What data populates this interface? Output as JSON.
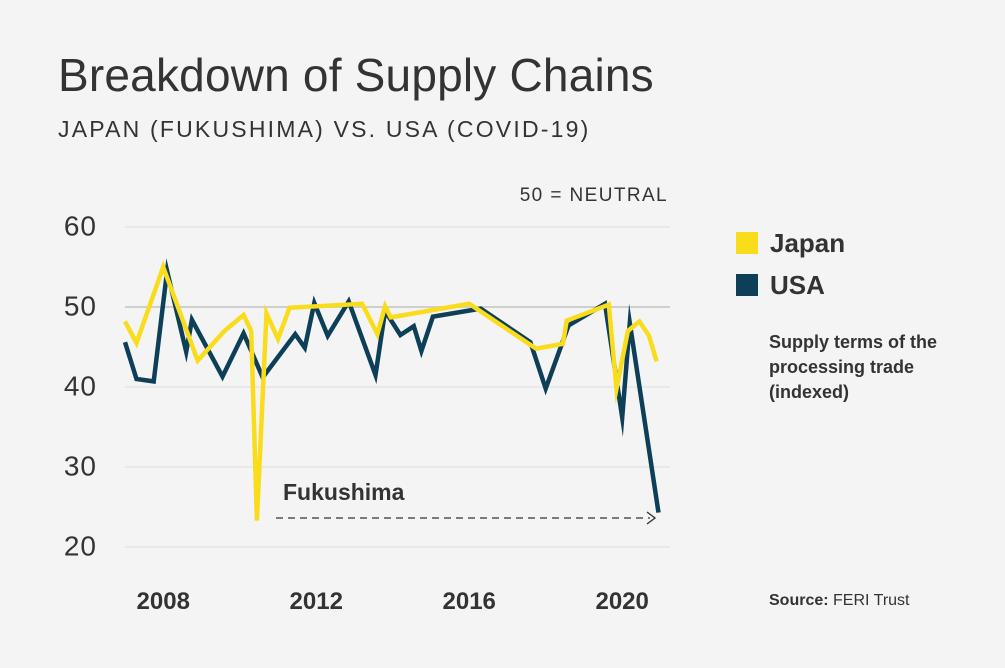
{
  "title": "Breakdown of Supply Chains",
  "subtitle": "JAPAN (FUKUSHIMA) VS. USA (COVID-19)",
  "neutral_note": "50 = NEUTRAL",
  "annotation": "Fukushima",
  "legend": {
    "japan": "Japan",
    "usa": "USA"
  },
  "note": "Supply terms of the processing trade (indexed)",
  "source": {
    "label": "Source:",
    "value": "FERI Trust"
  },
  "colors": {
    "japan": "#f9dc1c",
    "usa": "#0d4058",
    "grid": "#dcdcdc",
    "neutral_line": "#cfcfcf",
    "text": "#333333"
  },
  "chart_data": {
    "type": "line",
    "title": "Breakdown of Supply Chains",
    "subtitle": "JAPAN (FUKUSHIMA) VS. USA (COVID-19)",
    "xlabel": "",
    "ylabel": "",
    "xlim": [
      2007.0,
      2021.25
    ],
    "ylim": [
      20,
      60
    ],
    "x_ticks": [
      2008,
      2012,
      2016,
      2020
    ],
    "y_ticks": [
      20,
      30,
      40,
      50,
      60
    ],
    "neutral_value": 50,
    "grid": true,
    "legend_position": "right",
    "series": [
      {
        "name": "Japan",
        "color": "#f9dc1c",
        "points": [
          [
            2007.0,
            48.2
          ],
          [
            2007.3,
            45.5
          ],
          [
            2008.0,
            55.0
          ],
          [
            2008.9,
            43.3
          ],
          [
            2009.6,
            47.0
          ],
          [
            2010.1,
            49.0
          ],
          [
            2010.3,
            47.0
          ],
          [
            2010.45,
            23.3
          ],
          [
            2010.7,
            49.2
          ],
          [
            2011.0,
            46.0
          ],
          [
            2011.3,
            49.9
          ],
          [
            2013.2,
            50.4
          ],
          [
            2013.6,
            46.6
          ],
          [
            2013.8,
            50.1
          ],
          [
            2013.95,
            48.7
          ],
          [
            2016.0,
            50.4
          ],
          [
            2017.75,
            44.8
          ],
          [
            2018.45,
            45.4
          ],
          [
            2018.55,
            48.3
          ],
          [
            2019.65,
            50.3
          ],
          [
            2019.85,
            39.8
          ],
          [
            2020.15,
            47.0
          ],
          [
            2020.45,
            48.2
          ],
          [
            2020.7,
            46.4
          ],
          [
            2020.9,
            43.2
          ]
        ]
      },
      {
        "name": "USA",
        "color": "#0d4058",
        "points": [
          [
            2007.0,
            45.6
          ],
          [
            2007.3,
            41.0
          ],
          [
            2007.75,
            40.7
          ],
          [
            2008.1,
            54.5
          ],
          [
            2008.6,
            44.4
          ],
          [
            2008.75,
            48.4
          ],
          [
            2009.55,
            41.3
          ],
          [
            2010.1,
            46.7
          ],
          [
            2010.6,
            41.2
          ],
          [
            2011.45,
            46.6
          ],
          [
            2011.7,
            44.9
          ],
          [
            2011.95,
            50.5
          ],
          [
            2012.3,
            46.4
          ],
          [
            2012.85,
            50.7
          ],
          [
            2013.55,
            41.5
          ],
          [
            2013.8,
            49.5
          ],
          [
            2014.2,
            46.5
          ],
          [
            2014.55,
            47.6
          ],
          [
            2014.75,
            44.5
          ],
          [
            2015.05,
            48.8
          ],
          [
            2016.3,
            49.8
          ],
          [
            2017.6,
            45.6
          ],
          [
            2018.0,
            39.8
          ],
          [
            2018.6,
            47.7
          ],
          [
            2019.55,
            50.4
          ],
          [
            2020.0,
            36.2
          ],
          [
            2020.2,
            48.0
          ],
          [
            2020.95,
            24.3
          ]
        ]
      }
    ]
  }
}
